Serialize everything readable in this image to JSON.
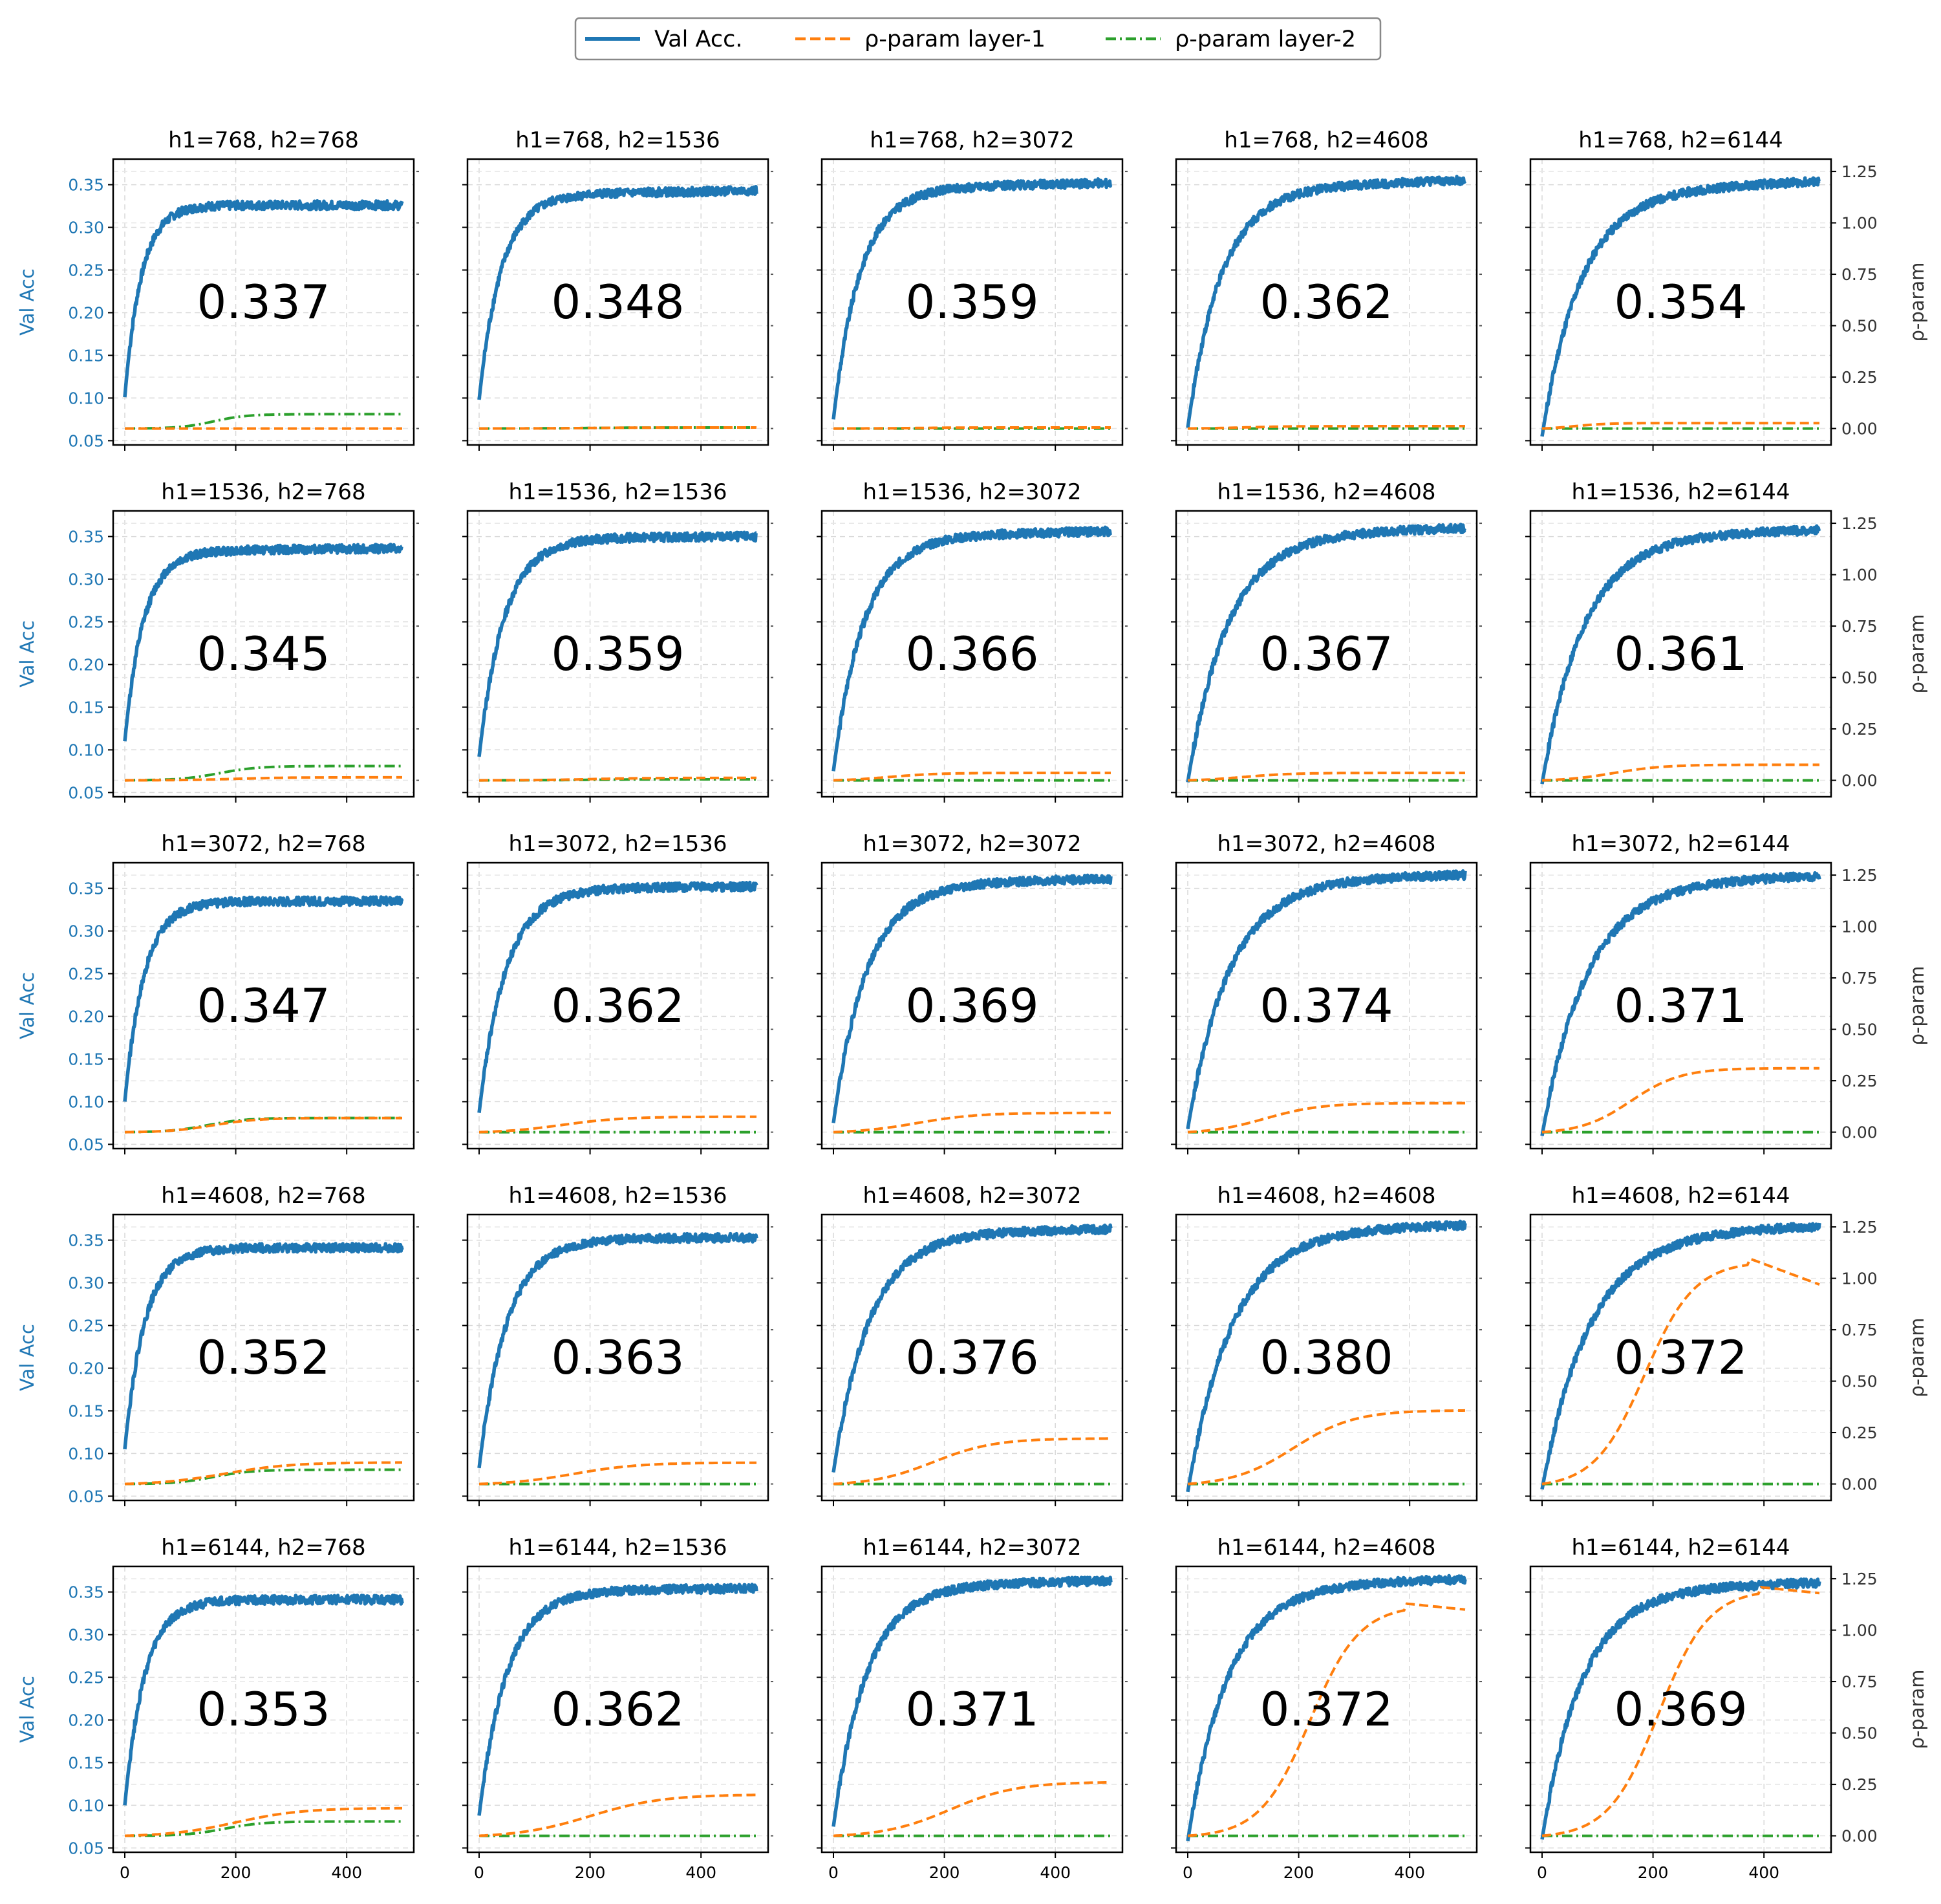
{
  "figure": {
    "legend": {
      "entries": [
        {
          "label": "Val Acc.",
          "color": "#1f77b4",
          "style": "solid"
        },
        {
          "label": "ρ-param layer-1",
          "color": "#ff7f0e",
          "style": "dashed"
        },
        {
          "label": "ρ-param layer-2",
          "color": "#2ca02c",
          "style": "dashdot"
        }
      ],
      "placement": "top-center"
    },
    "left_ylabel": "Val Acc",
    "right_ylabel": "ρ-param",
    "grid": true
  },
  "chart_data": {
    "type": "line",
    "layout": "5x5 grid of small multiples",
    "x_range": [
      0,
      500
    ],
    "x_ticks": [
      "0",
      "200",
      "400"
    ],
    "left_axis": {
      "label": "Val Acc",
      "range": [
        0.045,
        0.38
      ],
      "ticks": [
        "0.05",
        "0.10",
        "0.15",
        "0.20",
        "0.25",
        "0.30",
        "0.35"
      ]
    },
    "right_axis": {
      "label": "ρ-param",
      "range": [
        -0.08,
        1.31
      ],
      "ticks": [
        "0.00",
        "0.25",
        "0.50",
        "0.75",
        "1.00",
        "1.25"
      ]
    },
    "panels": [
      {
        "title": "h1=768, h2=768",
        "best": "0.337",
        "acc": {
          "start": 0.101,
          "plateau": 0.326,
          "tau": 30,
          "late": 0.0
        },
        "rho1": {
          "final": 0.0,
          "mid": 250,
          "width": 40
        },
        "rho2": {
          "final": 0.07,
          "mid": 160,
          "width": 30
        }
      },
      {
        "title": "h1=768, h2=1536",
        "best": "0.348",
        "acc": {
          "start": 0.098,
          "plateau": 0.338,
          "tau": 40,
          "late": 0.005
        },
        "rho1": {
          "final": 0.005,
          "mid": 200,
          "width": 50
        },
        "rho2": {
          "final": 0.005,
          "mid": 200,
          "width": 50
        }
      },
      {
        "title": "h1=768, h2=3072",
        "best": "0.359",
        "acc": {
          "start": 0.075,
          "plateau": 0.345,
          "tau": 48,
          "late": 0.007
        },
        "rho1": {
          "final": 0.005,
          "mid": 150,
          "width": 40
        },
        "rho2": {
          "final": 0.0,
          "mid": 200,
          "width": 50
        }
      },
      {
        "title": "h1=768, h2=4608",
        "best": "0.362",
        "acc": {
          "start": 0.065,
          "plateau": 0.345,
          "tau": 60,
          "late": 0.01
        },
        "rho1": {
          "final": 0.012,
          "mid": 100,
          "width": 40
        },
        "rho2": {
          "final": 0.0,
          "mid": 200,
          "width": 50
        }
      },
      {
        "title": "h1=768, h2=6144",
        "best": "0.354",
        "acc": {
          "start": 0.055,
          "plateau": 0.341,
          "tau": 70,
          "late": 0.013
        },
        "rho1": {
          "final": 0.03,
          "mid": 60,
          "width": 30
        },
        "rho2": {
          "final": 0.0,
          "mid": 200,
          "width": 50
        }
      },
      {
        "title": "h1=1536, h2=768",
        "best": "0.345",
        "acc": {
          "start": 0.11,
          "plateau": 0.333,
          "tau": 34,
          "late": 0.003
        },
        "rho1": {
          "final": 0.015,
          "mid": 200,
          "width": 50
        },
        "rho2": {
          "final": 0.07,
          "mid": 170,
          "width": 35
        }
      },
      {
        "title": "h1=1536, h2=1536",
        "best": "0.359",
        "acc": {
          "start": 0.092,
          "plateau": 0.348,
          "tau": 45,
          "late": 0.002
        },
        "rho1": {
          "final": 0.012,
          "mid": 200,
          "width": 50
        },
        "rho2": {
          "final": 0.005,
          "mid": 200,
          "width": 50
        }
      },
      {
        "title": "h1=1536, h2=3072",
        "best": "0.366",
        "acc": {
          "start": 0.075,
          "plateau": 0.35,
          "tau": 55,
          "late": 0.006
        },
        "rho1": {
          "final": 0.04,
          "mid": 100,
          "width": 45
        },
        "rho2": {
          "final": 0.0,
          "mid": 200,
          "width": 50
        }
      },
      {
        "title": "h1=1536, h2=4608",
        "best": "0.367",
        "acc": {
          "start": 0.062,
          "plateau": 0.352,
          "tau": 72,
          "late": 0.008
        },
        "rho1": {
          "final": 0.04,
          "mid": 100,
          "width": 45
        },
        "rho2": {
          "final": 0.0,
          "mid": 200,
          "width": 50
        }
      },
      {
        "title": "h1=1536, h2=6144",
        "best": "0.361",
        "acc": {
          "start": 0.06,
          "plateau": 0.35,
          "tau": 75,
          "late": 0.008
        },
        "rho1": {
          "final": 0.08,
          "mid": 130,
          "width": 45
        },
        "rho2": {
          "final": 0.0,
          "mid": 200,
          "width": 50
        }
      },
      {
        "title": "h1=3072, h2=768",
        "best": "0.347",
        "acc": {
          "start": 0.1,
          "plateau": 0.335,
          "tau": 35,
          "late": 0.0
        },
        "rho1": {
          "final": 0.07,
          "mid": 160,
          "width": 40
        },
        "rho2": {
          "final": 0.07,
          "mid": 150,
          "width": 35
        }
      },
      {
        "title": "h1=3072, h2=1536",
        "best": "0.362",
        "acc": {
          "start": 0.087,
          "plateau": 0.35,
          "tau": 48,
          "late": 0.002
        },
        "rho1": {
          "final": 0.08,
          "mid": 150,
          "width": 55
        },
        "rho2": {
          "final": 0.0,
          "mid": 200,
          "width": 50
        }
      },
      {
        "title": "h1=3072, h2=3072",
        "best": "0.369",
        "acc": {
          "start": 0.075,
          "plateau": 0.355,
          "tau": 60,
          "late": 0.006
        },
        "rho1": {
          "final": 0.1,
          "mid": 150,
          "width": 55
        },
        "rho2": {
          "final": 0.0,
          "mid": 200,
          "width": 50
        }
      },
      {
        "title": "h1=3072, h2=4608",
        "best": "0.374",
        "acc": {
          "start": 0.068,
          "plateau": 0.36,
          "tau": 75,
          "late": 0.006
        },
        "rho1": {
          "final": 0.15,
          "mid": 140,
          "width": 50
        },
        "rho2": {
          "final": 0.0,
          "mid": 200,
          "width": 50
        }
      },
      {
        "title": "h1=3072, h2=6144",
        "best": "0.371",
        "acc": {
          "start": 0.06,
          "plateau": 0.355,
          "tau": 80,
          "late": 0.01
        },
        "rho1": {
          "final": 0.32,
          "mid": 160,
          "width": 45
        },
        "rho2": {
          "final": 0.0,
          "mid": 200,
          "width": 50
        }
      },
      {
        "title": "h1=4608, h2=768",
        "best": "0.352",
        "acc": {
          "start": 0.105,
          "plateau": 0.341,
          "tau": 36,
          "late": 0.0
        },
        "rho1": {
          "final": 0.11,
          "mid": 180,
          "width": 60
        },
        "rho2": {
          "final": 0.07,
          "mid": 160,
          "width": 35
        }
      },
      {
        "title": "h1=4608, h2=1536",
        "best": "0.363",
        "acc": {
          "start": 0.083,
          "plateau": 0.352,
          "tau": 50,
          "late": 0.001
        },
        "rho1": {
          "final": 0.11,
          "mid": 170,
          "width": 60
        },
        "rho2": {
          "final": 0.0,
          "mid": 200,
          "width": 50
        }
      },
      {
        "title": "h1=4608, h2=3072",
        "best": "0.376",
        "acc": {
          "start": 0.078,
          "plateau": 0.358,
          "tau": 65,
          "late": 0.005
        },
        "rho1": {
          "final": 0.23,
          "mid": 180,
          "width": 55
        },
        "rho2": {
          "final": 0.0,
          "mid": 200,
          "width": 50
        }
      },
      {
        "title": "h1=4608, h2=4608",
        "best": "0.380",
        "acc": {
          "start": 0.055,
          "plateau": 0.362,
          "tau": 80,
          "late": 0.006
        },
        "rho1": {
          "final": 0.37,
          "mid": 190,
          "width": 55
        },
        "rho2": {
          "final": 0.0,
          "mid": 200,
          "width": 50
        }
      },
      {
        "title": "h1=4608, h2=6144",
        "best": "0.372",
        "acc": {
          "start": 0.058,
          "plateau": 0.357,
          "tau": 85,
          "late": 0.01
        },
        "rho1": {
          "final": 1.1,
          "mid": 185,
          "width": 45,
          "peak_at": 370,
          "end": 0.97
        },
        "rho2": {
          "final": 0.0,
          "mid": 200,
          "width": 50
        }
      },
      {
        "title": "h1=6144, h2=768",
        "best": "0.353",
        "acc": {
          "start": 0.1,
          "plateau": 0.341,
          "tau": 36,
          "late": 0.0
        },
        "rho1": {
          "final": 0.14,
          "mid": 200,
          "width": 60
        },
        "rho2": {
          "final": 0.07,
          "mid": 180,
          "width": 35
        }
      },
      {
        "title": "h1=6144, h2=1536",
        "best": "0.362",
        "acc": {
          "start": 0.088,
          "plateau": 0.352,
          "tau": 50,
          "late": 0.002
        },
        "rho1": {
          "final": 0.21,
          "mid": 200,
          "width": 65
        },
        "rho2": {
          "final": 0.0,
          "mid": 200,
          "width": 50
        }
      },
      {
        "title": "h1=6144, h2=3072",
        "best": "0.371",
        "acc": {
          "start": 0.075,
          "plateau": 0.358,
          "tau": 60,
          "late": 0.005
        },
        "rho1": {
          "final": 0.27,
          "mid": 210,
          "width": 60
        },
        "rho2": {
          "final": 0.0,
          "mid": 200,
          "width": 50
        }
      },
      {
        "title": "h1=6144, h2=4608",
        "best": "0.372",
        "acc": {
          "start": 0.058,
          "plateau": 0.358,
          "tau": 72,
          "late": 0.007
        },
        "rho1": {
          "final": 1.13,
          "mid": 220,
          "width": 45,
          "end": 1.1
        },
        "rho2": {
          "final": 0.0,
          "mid": 200,
          "width": 50
        }
      },
      {
        "title": "h1=6144, h2=6144",
        "best": "0.369",
        "acc": {
          "start": 0.06,
          "plateau": 0.353,
          "tau": 72,
          "late": 0.008
        },
        "rho1": {
          "final": 1.21,
          "mid": 210,
          "width": 45,
          "end": 1.18
        },
        "rho2": {
          "final": 0.0,
          "mid": 200,
          "width": 50
        }
      }
    ]
  }
}
